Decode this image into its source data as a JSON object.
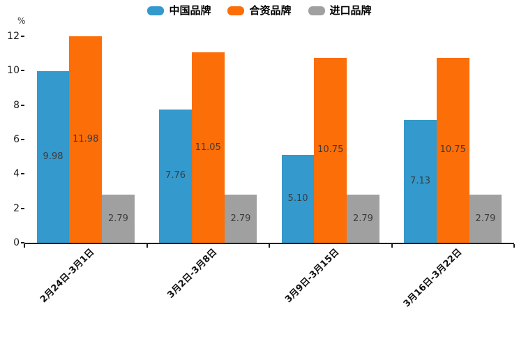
{
  "chart_data": {
    "type": "bar",
    "title": "",
    "xlabel": "",
    "ylabel": "%",
    "ylim": [
      0,
      12
    ],
    "yticks": [
      0,
      2,
      4,
      6,
      8,
      10,
      12
    ],
    "grid": false,
    "legend_position": "top-center",
    "value_labels": "inside-center, 2 decimals",
    "x_tick_style": "ticks at group boundaries, labels rotated 45deg",
    "categories": [
      "2月24日-3月1日",
      "3月2日-3月8日",
      "3月9日-3月15日",
      "3月16日-3月22日"
    ],
    "series": [
      {
        "name": "中国品牌",
        "color": "#3499cc",
        "values": [
          9.98,
          7.76,
          5.1,
          7.13
        ]
      },
      {
        "name": "合资品牌",
        "color": "#fc6e08",
        "values": [
          11.98,
          11.05,
          10.75,
          10.75
        ]
      },
      {
        "name": "进口品牌",
        "color": "#a0a0a0",
        "values": [
          2.79,
          2.79,
          2.79,
          2.79
        ]
      }
    ],
    "colors": {
      "axis": "#1f1f1f",
      "bar_label_text": "#3c3c3c",
      "background": "#ffffff"
    }
  }
}
